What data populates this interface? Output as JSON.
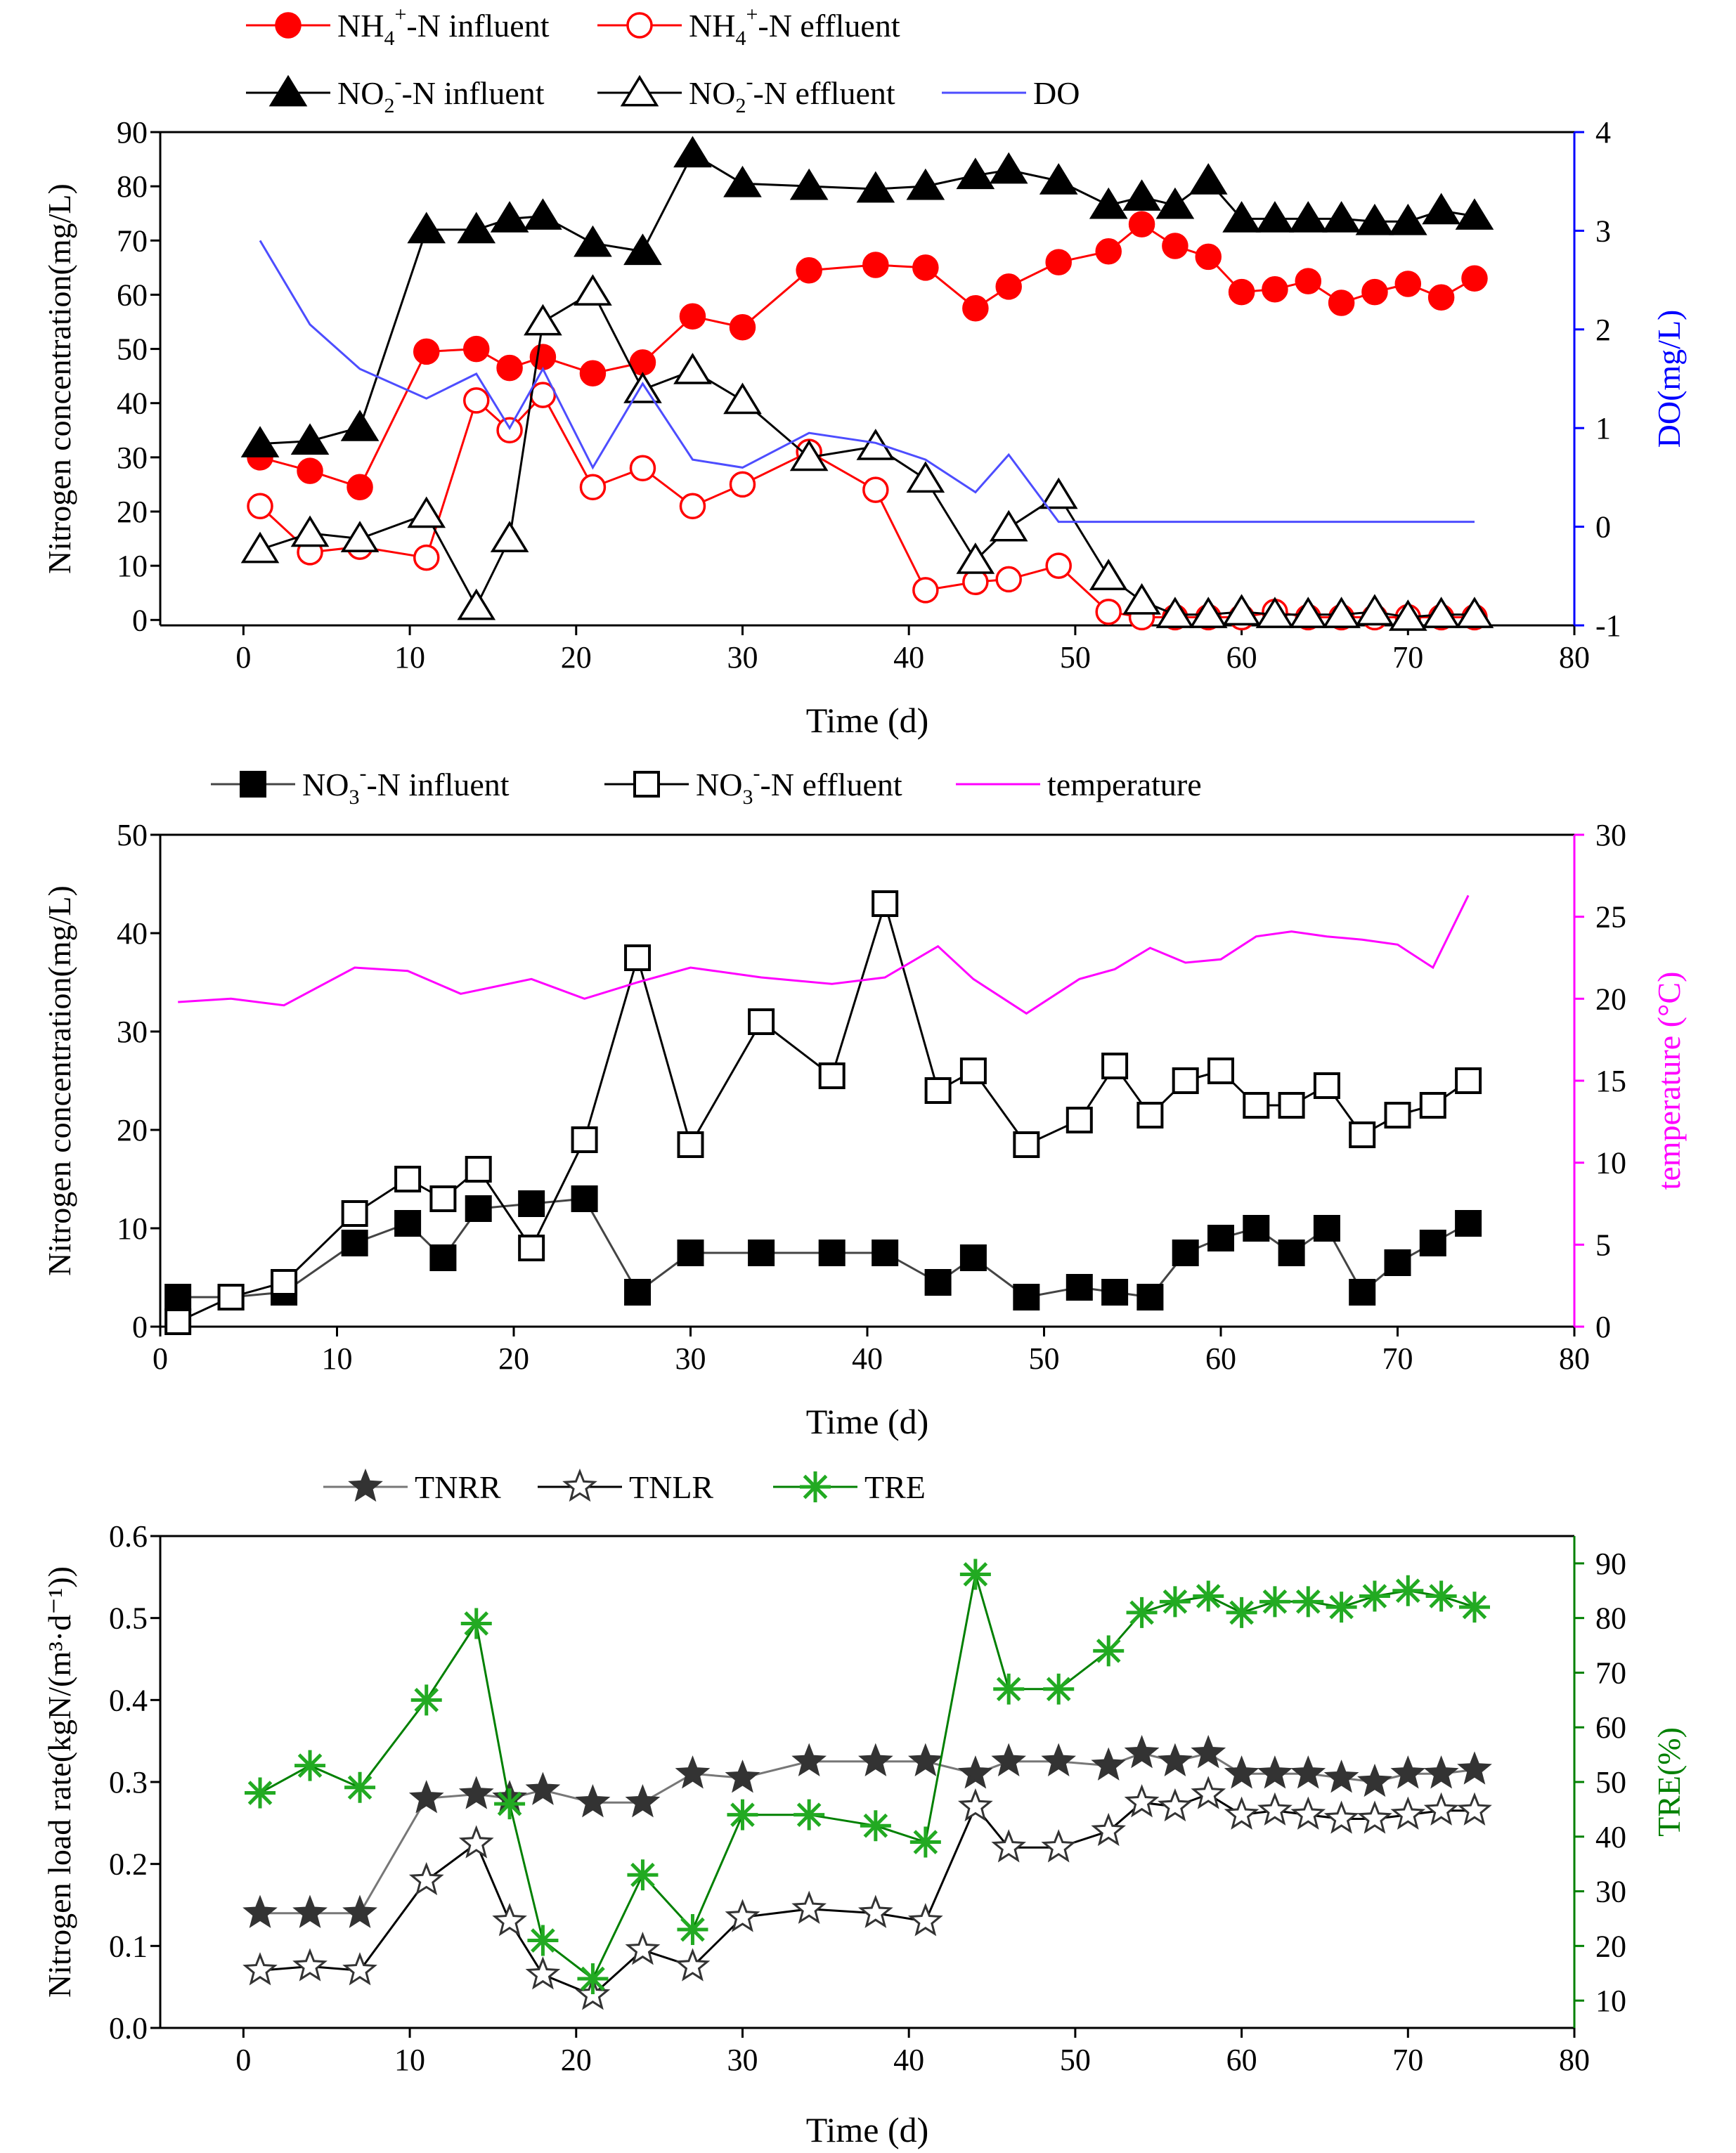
{
  "chart_data": [
    {
      "type": "line",
      "id": "p1",
      "xlabel": "Time (d)",
      "ylabel": "Nitrogen concentration(mg/L)",
      "y2label": "DO(mg/L)",
      "xlim": [
        -5,
        80
      ],
      "ylim": [
        -1,
        90
      ],
      "y2lim": [
        -1,
        4
      ],
      "xticks": [
        0,
        10,
        20,
        30,
        40,
        50,
        60,
        70,
        80
      ],
      "yticks": [
        0,
        10,
        20,
        30,
        40,
        50,
        60,
        70,
        80,
        90
      ],
      "y2ticks": [
        -1,
        0,
        1,
        2,
        3,
        4
      ],
      "y2color": "#0000ff",
      "legend": [
        [
          {
            "base": "NH",
            "sub": "4",
            "sup": "+",
            "rest": "-N influent",
            "series": "nh4_in"
          },
          {
            "base": "NH",
            "sub": "4",
            "sup": "+",
            "rest": "-N effluent",
            "series": "nh4_out"
          }
        ],
        [
          {
            "base": "NO",
            "sub": "2",
            "sup": "-",
            "rest": "-N influent",
            "series": "no2_in"
          },
          {
            "base": "NO",
            "sub": "2",
            "sup": "-",
            "rest": "-N effluent",
            "series": "no2_out"
          },
          {
            "base": "DO",
            "sub": "",
            "sup": "",
            "rest": "",
            "series": "do"
          }
        ]
      ],
      "series": [
        {
          "key": "nh4_in",
          "name": "NH4+-N influent",
          "axis": "y",
          "color": "#ff0000",
          "marker": "circle",
          "fill": true,
          "x": [
            1,
            4,
            7,
            11,
            14,
            16,
            18,
            21,
            24,
            27,
            30,
            34,
            38,
            41,
            44,
            46,
            49,
            52,
            54,
            56,
            58,
            60,
            62,
            64,
            66,
            68,
            70,
            72,
            74
          ],
          "y": [
            30,
            27.5,
            24.5,
            49.5,
            50,
            46.5,
            48.5,
            45.5,
            47.5,
            56,
            54,
            64.5,
            65.5,
            65,
            57.5,
            61.5,
            66,
            68,
            73,
            69,
            67,
            60.5,
            61,
            62.5,
            58.5,
            60.5,
            62,
            59.5,
            63
          ]
        },
        {
          "key": "nh4_out",
          "name": "NH4+-N effluent",
          "axis": "y",
          "color": "#ff0000",
          "marker": "circle",
          "fill": false,
          "x": [
            1,
            4,
            7,
            11,
            14,
            16,
            18,
            21,
            24,
            27,
            30,
            34,
            38,
            41,
            44,
            46,
            49,
            52,
            54,
            56,
            58,
            60,
            62,
            64,
            66,
            68,
            70,
            72,
            74
          ],
          "y": [
            21,
            12.5,
            13.5,
            11.5,
            40.5,
            35,
            41.5,
            24.5,
            28,
            21,
            25,
            31,
            24,
            5.5,
            7,
            7.5,
            10,
            1.5,
            0.5,
            0.5,
            0.5,
            0.5,
            1.5,
            0.5,
            0.5,
            0.5,
            0.5,
            0.5,
            0.5
          ]
        },
        {
          "key": "no2_in",
          "name": "NO2--N influent",
          "axis": "y",
          "color": "#000000",
          "marker": "triangle",
          "fill": true,
          "x": [
            1,
            4,
            7,
            11,
            14,
            16,
            18,
            21,
            24,
            27,
            30,
            34,
            38,
            41,
            44,
            46,
            49,
            52,
            54,
            56,
            58,
            60,
            62,
            64,
            66,
            68,
            70,
            72,
            74
          ],
          "y": [
            32.5,
            33,
            35.5,
            72,
            72,
            74,
            74.5,
            69.5,
            68,
            86,
            80.5,
            80,
            79.5,
            80,
            82,
            83,
            81,
            76.5,
            78,
            76.5,
            81,
            74,
            74,
            74,
            74,
            73.5,
            73.5,
            75.5,
            74.5
          ]
        },
        {
          "key": "no2_out",
          "name": "NO2--N effluent",
          "axis": "y",
          "color": "#000000",
          "marker": "triangle",
          "fill": false,
          "x": [
            1,
            4,
            7,
            11,
            14,
            16,
            18,
            21,
            24,
            27,
            30,
            34,
            38,
            41,
            44,
            46,
            49,
            52,
            54,
            56,
            58,
            60,
            62,
            64,
            66,
            68,
            70,
            72,
            74
          ],
          "y": [
            13,
            16,
            15,
            19.5,
            2.5,
            15,
            55,
            60.5,
            42.5,
            46,
            40.5,
            30,
            32,
            26,
            11,
            17,
            23,
            8,
            3.5,
            1,
            1,
            1.5,
            1,
            1,
            1,
            1.5,
            0.5,
            1,
            1
          ]
        },
        {
          "key": "do",
          "name": "DO",
          "axis": "y2",
          "color": "#4d4dff",
          "marker": "none",
          "fill": false,
          "x": [
            1,
            4,
            7,
            11,
            14,
            16,
            18,
            21,
            24,
            27,
            30,
            34,
            38,
            41,
            44,
            46,
            49,
            52,
            54,
            56,
            58,
            60,
            62,
            64,
            66,
            68,
            70,
            72,
            74
          ],
          "y": [
            2.9,
            2.05,
            1.6,
            1.3,
            1.55,
            1.0,
            1.6,
            0.6,
            1.45,
            0.68,
            0.6,
            0.95,
            0.85,
            0.68,
            0.35,
            0.73,
            0.05,
            0.05,
            0.05,
            0.05,
            0.05,
            0.05,
            0.05,
            0.05,
            0.05,
            0.05,
            0.05,
            0.05,
            0.05
          ]
        }
      ]
    },
    {
      "type": "line",
      "id": "p2",
      "xlabel": "Time (d)",
      "ylabel": "Nitrogen concentration(mg/L)",
      "y2label": "temperature (°C)",
      "xlim": [
        0,
        80
      ],
      "ylim": [
        0,
        50
      ],
      "y2lim": [
        0,
        30
      ],
      "xticks": [
        0,
        10,
        20,
        30,
        40,
        50,
        60,
        70,
        80
      ],
      "yticks": [
        0,
        10,
        20,
        30,
        40,
        50
      ],
      "y2ticks": [
        0,
        5,
        10,
        15,
        20,
        25,
        30
      ],
      "y2color": "#ff00ff",
      "legend": [
        [
          {
            "base": "NO",
            "sub": "3",
            "sup": "-",
            "rest": "-N influent",
            "series": "no3_in"
          },
          {
            "base": "NO",
            "sub": "3",
            "sup": "-",
            "rest": "-N effluent",
            "series": "no3_out"
          },
          {
            "base": "temperature",
            "sub": "",
            "sup": "",
            "rest": "",
            "series": "temp"
          }
        ]
      ],
      "series": [
        {
          "key": "no3_in",
          "name": "NO3--N influent",
          "axis": "y",
          "color": "#000000",
          "line": "#444444",
          "marker": "square",
          "fill": true,
          "x": [
            1,
            4,
            7,
            11,
            14,
            16,
            18,
            21,
            24,
            27,
            30,
            34,
            38,
            41,
            44,
            46,
            49,
            52,
            54,
            56,
            58,
            60,
            62,
            64,
            66,
            68,
            70,
            72,
            74
          ],
          "y": [
            3,
            3,
            3.5,
            8.5,
            10.5,
            7,
            12,
            12.5,
            13,
            3.5,
            7.5,
            7.5,
            7.5,
            7.5,
            4.5,
            7,
            3,
            4,
            3.5,
            3,
            7.5,
            9,
            10,
            7.5,
            10,
            3.5,
            6.5,
            8.5,
            10.5
          ]
        },
        {
          "key": "no3_out",
          "name": "NO3--N effluent",
          "axis": "y",
          "color": "#000000",
          "line": "#000000",
          "marker": "square",
          "fill": false,
          "x": [
            1,
            4,
            7,
            11,
            14,
            16,
            18,
            21,
            24,
            27,
            30,
            34,
            38,
            41,
            44,
            46,
            49,
            52,
            54,
            56,
            58,
            60,
            62,
            64,
            66,
            68,
            70,
            72,
            74
          ],
          "y": [
            0.5,
            3,
            4.5,
            11.5,
            15,
            13,
            16,
            8,
            19,
            37.5,
            18.5,
            31,
            25.5,
            43,
            24,
            26,
            18.5,
            21,
            26.5,
            21.5,
            25,
            26,
            22.5,
            22.5,
            24.5,
            19.5,
            21.5,
            22.5,
            25
          ]
        },
        {
          "key": "temp",
          "name": "temperature",
          "axis": "y2",
          "color": "#ff00ff",
          "marker": "none",
          "fill": false,
          "x": [
            1,
            4,
            7,
            11,
            14,
            17,
            21,
            24,
            27,
            30,
            34,
            38,
            41,
            44,
            46,
            49,
            52,
            54,
            56,
            58,
            60,
            62,
            64,
            66,
            68,
            70,
            72,
            74
          ],
          "y": [
            19.8,
            20.0,
            19.6,
            21.9,
            21.7,
            20.3,
            21.2,
            20.0,
            21.0,
            21.9,
            21.3,
            20.9,
            21.3,
            23.2,
            21.2,
            19.1,
            21.2,
            21.8,
            23.1,
            22.2,
            22.4,
            23.8,
            24.1,
            23.8,
            23.6,
            23.3,
            21.9,
            26.3
          ]
        }
      ]
    },
    {
      "type": "line",
      "id": "p3",
      "xlabel": "Time (d)",
      "ylabel": "Nitrogen load rate(kgN/(m³·d⁻¹))",
      "y2label": "TRE(%)",
      "xlim": [
        -5,
        80
      ],
      "ylim": [
        0,
        0.6
      ],
      "y2lim": [
        5,
        95
      ],
      "xticks": [
        0,
        10,
        20,
        30,
        40,
        50,
        60,
        70,
        80
      ],
      "yticks": [
        0.0,
        0.1,
        0.2,
        0.3,
        0.4,
        0.5,
        0.6
      ],
      "ytick_labels": [
        "0.0",
        "0.1",
        "0.2",
        "0.3",
        "0.4",
        "0.5",
        "0.6"
      ],
      "y2ticks": [
        10,
        20,
        30,
        40,
        50,
        60,
        70,
        80,
        90
      ],
      "y2color": "#008000",
      "legend": [
        [
          {
            "base": "TNRR",
            "sub": "",
            "sup": "",
            "rest": "",
            "series": "tnrr"
          },
          {
            "base": "TNLR",
            "sub": "",
            "sup": "",
            "rest": "",
            "series": "tnlr"
          },
          {
            "base": "TRE",
            "sub": "",
            "sup": "",
            "rest": "",
            "series": "tre"
          }
        ]
      ],
      "series": [
        {
          "key": "tnrr",
          "name": "TNRR",
          "axis": "y",
          "color": "#333333",
          "line": "#777777",
          "marker": "star",
          "fill": true,
          "x": [
            1,
            4,
            7,
            11,
            14,
            16,
            18,
            21,
            24,
            27,
            30,
            34,
            38,
            41,
            44,
            46,
            49,
            52,
            54,
            56,
            58,
            60,
            62,
            64,
            66,
            68,
            70,
            72,
            74
          ],
          "y": [
            0.14,
            0.14,
            0.14,
            0.28,
            0.285,
            0.28,
            0.29,
            0.275,
            0.275,
            0.31,
            0.305,
            0.325,
            0.325,
            0.325,
            0.31,
            0.325,
            0.325,
            0.32,
            0.335,
            0.325,
            0.335,
            0.31,
            0.31,
            0.31,
            0.305,
            0.3,
            0.31,
            0.31,
            0.315
          ]
        },
        {
          "key": "tnlr",
          "name": "TNLR",
          "axis": "y",
          "color": "#333333",
          "line": "#000000",
          "marker": "star",
          "fill": false,
          "x": [
            1,
            4,
            7,
            11,
            14,
            16,
            18,
            21,
            24,
            27,
            30,
            34,
            38,
            41,
            44,
            46,
            49,
            52,
            54,
            56,
            58,
            60,
            62,
            64,
            66,
            68,
            70,
            72,
            74
          ],
          "y": [
            0.07,
            0.075,
            0.07,
            0.18,
            0.225,
            0.13,
            0.065,
            0.04,
            0.095,
            0.075,
            0.135,
            0.145,
            0.14,
            0.13,
            0.27,
            0.22,
            0.22,
            0.24,
            0.275,
            0.27,
            0.285,
            0.26,
            0.265,
            0.26,
            0.255,
            0.255,
            0.26,
            0.265,
            0.265
          ]
        },
        {
          "key": "tre",
          "name": "TRE",
          "axis": "y2",
          "color": "#22aa22",
          "line": "#008000",
          "marker": "asterisk",
          "fill": false,
          "x": [
            1,
            4,
            7,
            11,
            14,
            16,
            18,
            21,
            24,
            27,
            30,
            34,
            38,
            41,
            44,
            46,
            49,
            52,
            54,
            56,
            58,
            60,
            62,
            64,
            66,
            68,
            70,
            72,
            74
          ],
          "y": [
            48,
            53,
            49,
            65,
            79,
            46,
            21,
            14,
            33,
            23,
            44,
            44,
            42,
            39,
            88,
            67,
            67,
            74,
            81,
            83,
            84,
            81,
            83,
            83,
            82,
            84,
            85,
            84,
            82
          ]
        }
      ]
    }
  ]
}
